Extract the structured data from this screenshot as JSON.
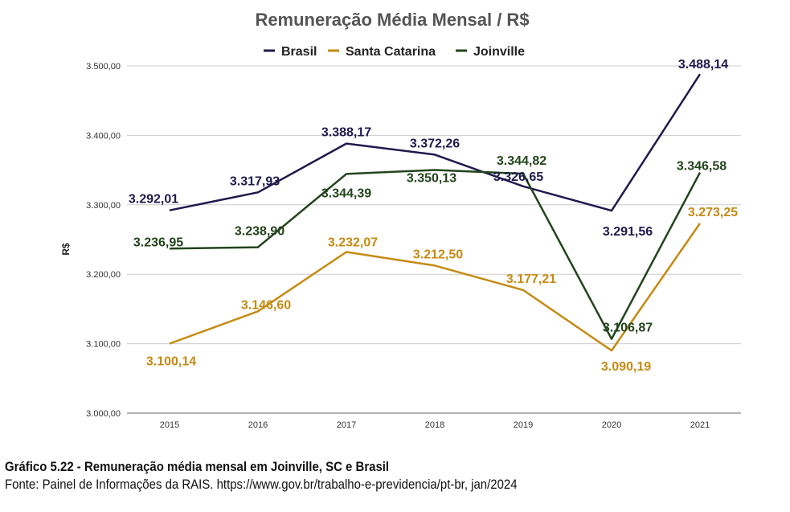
{
  "chart_data": {
    "type": "line",
    "title": "Remuneração Média Mensal / R$",
    "xlabel": "",
    "ylabel": "R$",
    "categories": [
      "2015",
      "2016",
      "2017",
      "2018",
      "2019",
      "2020",
      "2021"
    ],
    "ylim": [
      3000,
      3500
    ],
    "yticks": [
      3000,
      3100,
      3200,
      3300,
      3400,
      3500
    ],
    "ytick_labels": [
      "3.000,00",
      "3.100,00",
      "3.200,00",
      "3.300,00",
      "3.400,00",
      "3.500,00"
    ],
    "grid": true,
    "legend_position": "top",
    "series": [
      {
        "name": "Brasil",
        "color": "#1f1a4d",
        "values": [
          3292.01,
          3317.93,
          3388.17,
          3372.26,
          3326.65,
          3291.56,
          3488.14
        ],
        "labels": [
          "3.292,01",
          "3.317,93",
          "3.388,17",
          "3.372,26",
          "3.326,65",
          "3.291,56",
          "3.488,14"
        ]
      },
      {
        "name": "Santa Catarina",
        "color": "#c68a12",
        "values": [
          3100.14,
          3146.6,
          3232.07,
          3212.5,
          3177.21,
          3090.19,
          3273.25
        ],
        "labels": [
          "3.100,14",
          "3.146,60",
          "3.232,07",
          "3.212,50",
          "3.177,21",
          "3.090,19",
          "3.273,25"
        ]
      },
      {
        "name": "Joinville",
        "color": "#23441c",
        "values": [
          3236.95,
          3238.9,
          3344.39,
          3350.13,
          3344.82,
          3106.87,
          3346.58
        ],
        "labels": [
          "3.236,95",
          "3.238,90",
          "3.344,39",
          "3.350,13",
          "3.344,82",
          "3.106,87",
          "3.346,58"
        ]
      }
    ]
  },
  "caption": {
    "title": "Gráfico 5.22 - Remuneração média mensal em Joinville, SC e Brasil",
    "source": "Fonte: Painel de Informações da RAIS. https://www.gov.br/trabalho-e-previdencia/pt-br, jan/2024"
  }
}
